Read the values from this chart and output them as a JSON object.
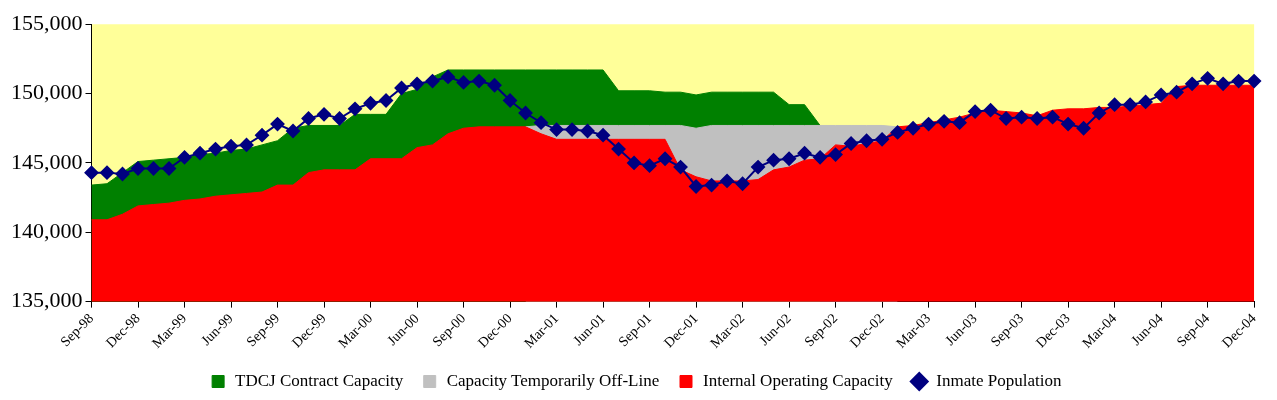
{
  "chart_data": {
    "type": "area",
    "grid": false,
    "legend": "bottom",
    "categories": [
      "Sep-98",
      null,
      null,
      "Dec-98",
      null,
      null,
      "Mar-99",
      null,
      null,
      "Jun-99",
      null,
      null,
      "Sep-99",
      null,
      null,
      "Dec-99",
      null,
      null,
      "Mar-00",
      null,
      null,
      "Jun-00",
      null,
      null,
      "Sep-00",
      null,
      null,
      "Dec-00",
      null,
      null,
      "Mar-01",
      null,
      null,
      "Jun-01",
      null,
      null,
      "Sep-01",
      null,
      null,
      "Dec-01",
      null,
      null,
      "Mar-02",
      null,
      null,
      "Jun-02",
      null,
      null,
      "Sep-02",
      null,
      null,
      "Dec-02",
      null,
      null,
      "Mar-03",
      null,
      null,
      "Jun-03",
      null,
      null,
      "Sep-03",
      null,
      null,
      "Dec-03",
      null,
      null,
      "Mar-04",
      null,
      null,
      "Jun-04",
      null,
      null,
      "Sep-04",
      null,
      null,
      "Dec-04"
    ],
    "ylim": [
      135000,
      155000
    ],
    "yticks": [
      {
        "value": 135000,
        "label": "135,000"
      },
      {
        "value": 140000,
        "label": "140,000"
      },
      {
        "value": 145000,
        "label": "145,000"
      },
      {
        "value": 150000,
        "label": "150,000"
      },
      {
        "value": 155000,
        "label": "155,000"
      }
    ],
    "series": [
      {
        "name": "TDCJ Contract Capacity",
        "color": "#008000",
        "values": [
          143400,
          143500,
          144300,
          145100,
          145200,
          145300,
          145400,
          145600,
          145700,
          145900,
          146000,
          146300,
          146600,
          147500,
          147700,
          147700,
          147700,
          148500,
          148500,
          148500,
          150000,
          150300,
          151200,
          151700,
          151700,
          151700,
          151700,
          151700,
          151700,
          151700,
          151700,
          151700,
          151700,
          151700,
          150200,
          150200,
          150200,
          150100,
          150100,
          149900,
          150100,
          150100,
          150100,
          150100,
          150100,
          149200,
          149200,
          147700,
          null,
          null,
          null,
          null,
          null,
          null,
          null,
          null,
          null,
          null,
          null,
          null,
          null,
          null,
          null,
          null,
          null,
          null,
          null,
          null,
          null,
          null,
          null,
          null,
          null,
          null,
          null,
          null
        ]
      },
      {
        "name": "Capacity Temporarily Off-Line",
        "color": "#c0c0c0",
        "values": [
          null,
          null,
          null,
          null,
          null,
          null,
          null,
          null,
          null,
          null,
          null,
          null,
          null,
          null,
          null,
          null,
          null,
          null,
          null,
          null,
          null,
          null,
          null,
          null,
          null,
          null,
          null,
          null,
          147600,
          147700,
          147700,
          147700,
          147700,
          147700,
          147700,
          147700,
          147700,
          147700,
          147700,
          147500,
          147700,
          147700,
          147700,
          147700,
          147700,
          147700,
          147700,
          147700,
          147700,
          147700,
          147700,
          147700,
          147600,
          null,
          null,
          null,
          null,
          null,
          null,
          null,
          null,
          null,
          null,
          null,
          null,
          null,
          null,
          null,
          null,
          null,
          null,
          null,
          null,
          null,
          null,
          null
        ]
      },
      {
        "name": "Internal Operating Capacity",
        "color": "#ff0000",
        "values": [
          140900,
          140900,
          141300,
          141900,
          142000,
          142100,
          142300,
          142400,
          142600,
          142700,
          142800,
          142900,
          143400,
          143400,
          144300,
          144500,
          144500,
          144500,
          145300,
          145300,
          145300,
          146100,
          146300,
          147100,
          147500,
          147600,
          147600,
          147600,
          147600,
          147100,
          146700,
          146700,
          146700,
          146700,
          146700,
          146700,
          146700,
          146700,
          144500,
          144000,
          143700,
          143700,
          143700,
          143800,
          144500,
          144700,
          145200,
          145300,
          146300,
          146200,
          146400,
          146600,
          147600,
          147700,
          147900,
          148100,
          148300,
          148600,
          148800,
          148700,
          148600,
          148400,
          148800,
          148900,
          148900,
          149000,
          149000,
          149100,
          149200,
          149300,
          150500,
          150600,
          150600,
          150600,
          150600,
          150600
        ]
      },
      {
        "name": "Inmate Population",
        "type": "line",
        "marker": "diamond",
        "color": "#000080",
        "values": [
          144300,
          144300,
          144200,
          144600,
          144600,
          144600,
          145400,
          145700,
          146000,
          146200,
          146300,
          147000,
          147800,
          147300,
          148200,
          148500,
          148200,
          148900,
          149300,
          149500,
          150400,
          150700,
          150900,
          151200,
          150800,
          150900,
          150600,
          149500,
          148600,
          147900,
          147400,
          147400,
          147300,
          147000,
          146000,
          145000,
          144800,
          145300,
          144700,
          143300,
          143400,
          143700,
          143500,
          144700,
          145200,
          145300,
          145700,
          145400,
          145600,
          146400,
          146600,
          146700,
          147200,
          147500,
          147800,
          148000,
          147900,
          148700,
          148800,
          148200,
          148300,
          148200,
          148300,
          147800,
          147500,
          148600,
          149200,
          149200,
          149400,
          149900,
          150100,
          150700,
          151100,
          150700,
          150900,
          150900
        ]
      }
    ]
  }
}
